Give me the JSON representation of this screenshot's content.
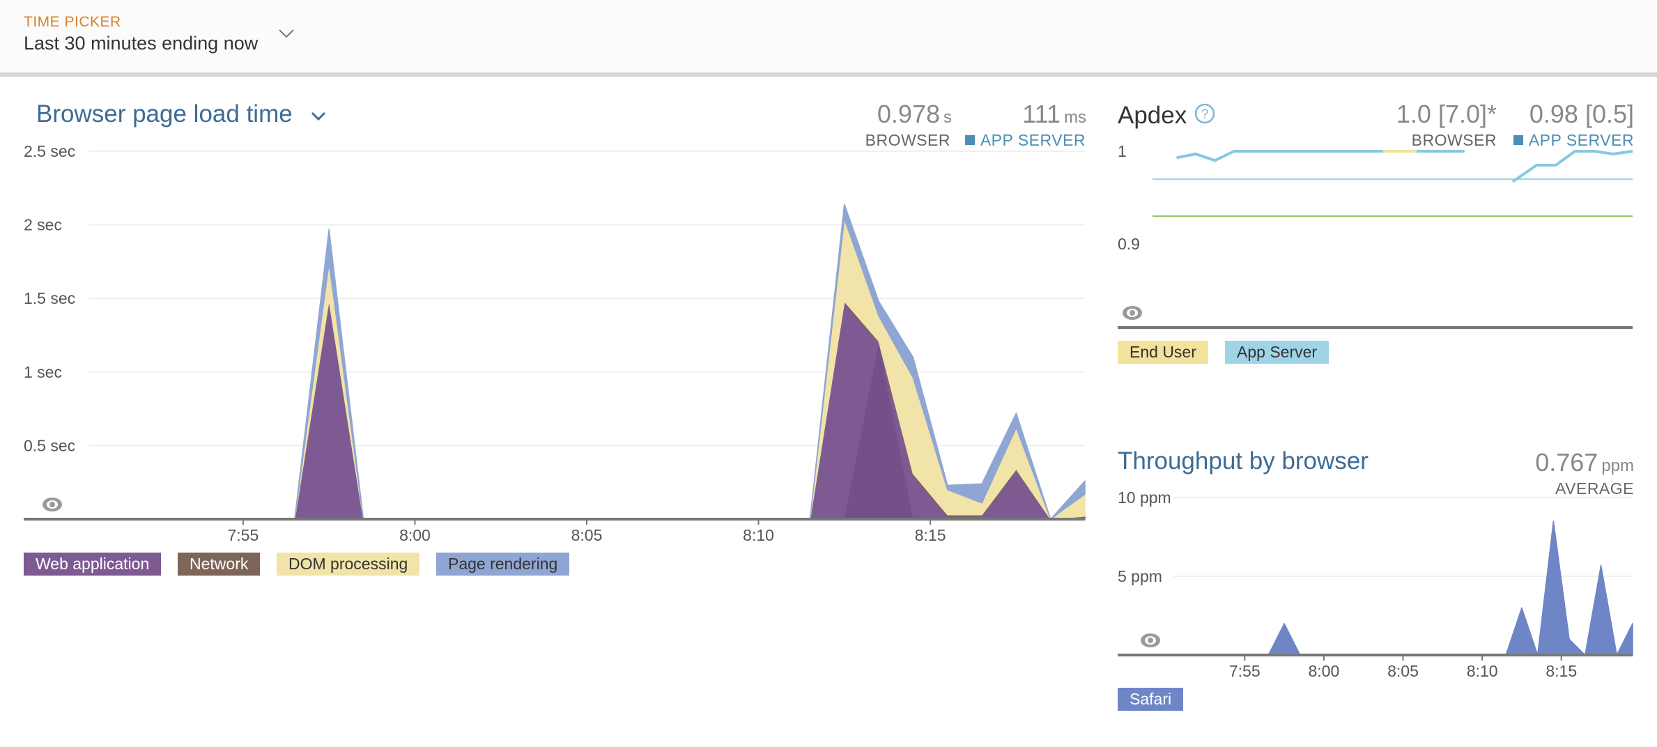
{
  "time_picker": {
    "label": "TIME PICKER",
    "value": "Last 30 minutes ending now"
  },
  "load_time": {
    "title": "Browser page load time",
    "browser": {
      "value": "0.978",
      "unit": "s",
      "label": "BROWSER"
    },
    "app_server": {
      "value": "111",
      "unit": "ms",
      "label": "APP SERVER"
    },
    "legend": [
      {
        "label": "Web application",
        "color": "#7e5a93",
        "text_color": "#ffffff"
      },
      {
        "label": "Network",
        "color": "#7d6559",
        "text_color": "#ffffff"
      },
      {
        "label": "DOM processing",
        "color": "#f2e3a8",
        "text_color": "#333333"
      },
      {
        "label": "Page rendering",
        "color": "#8fa6d4",
        "text_color": "#333333"
      }
    ]
  },
  "apdex": {
    "title": "Apdex",
    "browser": {
      "value": "1.0 [7.0]*",
      "label": "BROWSER"
    },
    "app_server": {
      "value": "0.98 [0.5]",
      "label": "APP SERVER"
    },
    "legend": [
      {
        "label": "End User",
        "color": "#f2e29b",
        "text_color": "#333333"
      },
      {
        "label": "App Server",
        "color": "#9fd4e6",
        "text_color": "#333333"
      }
    ]
  },
  "throughput": {
    "title": "Throughput by browser",
    "average": {
      "value": "0.767",
      "unit": "ppm",
      "label": "AVERAGE"
    },
    "legend": [
      {
        "label": "Safari",
        "color": "#6f86c6",
        "text_color": "#ffffff"
      }
    ]
  },
  "chart_data": [
    {
      "type": "area",
      "title": "Browser page load time",
      "ylim": [
        0,
        2.5
      ],
      "y_ticks": [
        {
          "value": 2.5,
          "label": "2.5 sec"
        },
        {
          "value": 2,
          "label": "2 sec"
        },
        {
          "value": 1.5,
          "label": "1.5 sec"
        },
        {
          "value": 1,
          "label": "1 sec"
        },
        {
          "value": 0.5,
          "label": "0.5 sec"
        }
      ],
      "xlim": [
        -4.5,
        24.5
      ],
      "x_ticks": [
        {
          "value": 0,
          "label": "7:55"
        },
        {
          "value": 5,
          "label": "8:00"
        },
        {
          "value": 10,
          "label": "8:05"
        },
        {
          "value": 15,
          "label": "8:10"
        },
        {
          "value": 20,
          "label": "8:15"
        }
      ],
      "stacked": true,
      "x": [
        -4.5,
        1.5,
        2.5,
        3.5,
        16.5,
        17.5,
        18.5,
        19.5,
        20.5,
        21.5,
        22.5,
        23.5,
        24.5
      ],
      "series": [
        {
          "name": "Web application",
          "color": "#7e5a93",
          "values": [
            0,
            0,
            1.48,
            0,
            0,
            1.47,
            1.2,
            0.3,
            0.02,
            0.02,
            0.33,
            0,
            0.02
          ]
        },
        {
          "name": "Network",
          "color": "#7d6559",
          "values": [
            0,
            0,
            0.01,
            0,
            0,
            0.01,
            0.01,
            0.01,
            0.01,
            0.01,
            0.01,
            0,
            0
          ]
        },
        {
          "name": "DOM processing",
          "color": "#f2e3a8",
          "values": [
            0,
            0,
            0.25,
            0,
            0,
            0.56,
            0.17,
            0.65,
            0.17,
            0.08,
            0.28,
            0,
            0.15
          ]
        },
        {
          "name": "Page rendering",
          "color": "#8fa6d4",
          "values": [
            0,
            0,
            0.23,
            0,
            0,
            0.1,
            0.1,
            0.14,
            0.03,
            0.13,
            0.1,
            0,
            0.09
          ]
        }
      ],
      "overlay": [
        {
          "color": "#6a4a80",
          "x": [
            17.5,
            18.5,
            19.5
          ],
          "values": [
            0,
            1.2,
            0
          ]
        }
      ]
    },
    {
      "type": "line",
      "title": "Apdex",
      "ylim": [
        0.81,
        1.0
      ],
      "y_ticks": [
        {
          "value": 1.0,
          "label": "1"
        },
        {
          "value": 0.9,
          "label": "0.9"
        }
      ],
      "thresholds": [
        {
          "value": 0.97,
          "color": "#9fd4e6"
        },
        {
          "value": 0.93,
          "color": "#8cc45a"
        }
      ],
      "series": [
        {
          "name": "End User",
          "color": "#f2e29b",
          "segments": [
            {
              "x": [
                0.45,
                0.6
              ],
              "y": [
                1.0,
                1.0
              ]
            }
          ]
        },
        {
          "name": "App Server",
          "color": "#87c8e0",
          "segments": [
            {
              "x": [
                0.05,
                0.09,
                0.13,
                0.17,
                0.48
              ],
              "y": [
                0.993,
                0.997,
                0.99,
                1.0,
                1.0
              ]
            },
            {
              "x": [
                0.55,
                0.65
              ],
              "y": [
                1.0,
                1.0
              ]
            },
            {
              "x": [
                0.75,
                0.8,
                0.84,
                0.88,
                0.92,
                0.96,
                1.0
              ],
              "y": [
                0.967,
                0.985,
                0.985,
                1.0,
                1.0,
                0.997,
                1.0
              ]
            }
          ]
        }
      ]
    },
    {
      "type": "area",
      "title": "Throughput by browser",
      "ylim": [
        0,
        10
      ],
      "y_ticks": [
        {
          "value": 10,
          "label": "10 ppm"
        },
        {
          "value": 5,
          "label": "5 ppm"
        }
      ],
      "xlim": [
        -4.5,
        24.5
      ],
      "x_ticks": [
        {
          "value": 0,
          "label": "7:55"
        },
        {
          "value": 5,
          "label": "8:00"
        },
        {
          "value": 10,
          "label": "8:05"
        },
        {
          "value": 15,
          "label": "8:10"
        },
        {
          "value": 20,
          "label": "8:15"
        }
      ],
      "x": [
        -4.5,
        1.5,
        2.5,
        3.5,
        16.5,
        17.5,
        18.5,
        19.5,
        20.5,
        21.5,
        22.5,
        23.5,
        24.5
      ],
      "series": [
        {
          "name": "Safari",
          "color": "#6f86c6",
          "values": [
            0,
            0,
            2,
            0,
            0,
            3,
            0,
            8.5,
            1,
            0,
            5.7,
            0,
            2
          ]
        }
      ]
    }
  ]
}
